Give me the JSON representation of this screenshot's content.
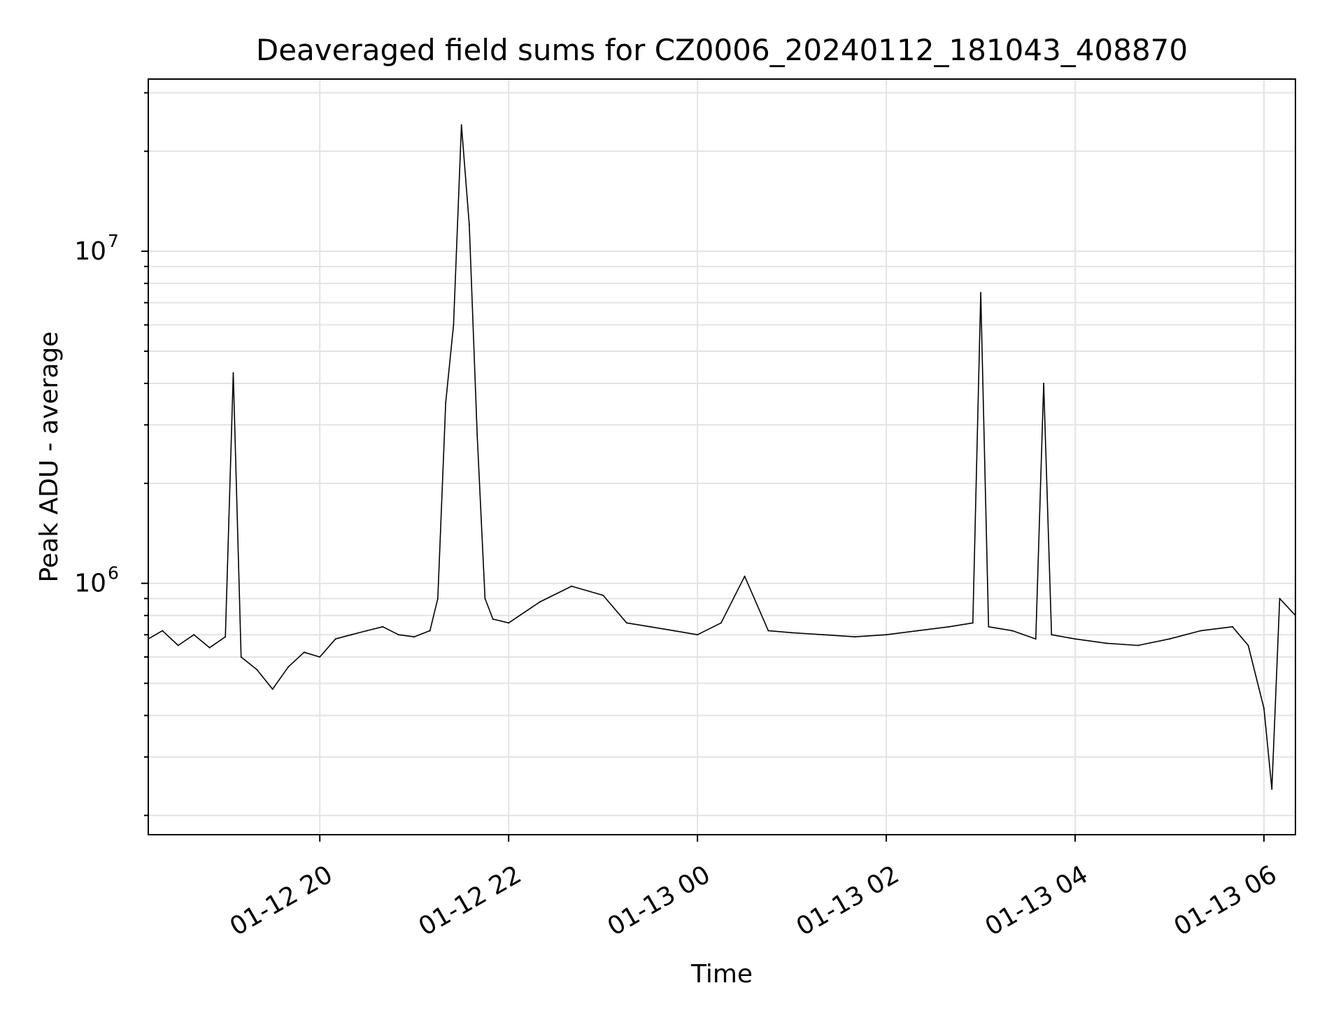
{
  "chart_data": {
    "type": "line",
    "title": "Deaveraged field sums for CZ0006_20240112_181043_408870",
    "xlabel": "Time",
    "ylabel": "Peak ADU - average",
    "yscale": "log",
    "grid": true,
    "legend": "none",
    "xlim": [
      "2024-01-12 18:11",
      "2024-01-13 06:20"
    ],
    "ylim": [
      175000,
      33000000
    ],
    "x_ticks": [
      {
        "value": "2024-01-12 20:00",
        "label": "01-12 20"
      },
      {
        "value": "2024-01-12 22:00",
        "label": "01-12 22"
      },
      {
        "value": "2024-01-13 00:00",
        "label": "01-13 00"
      },
      {
        "value": "2024-01-13 02:00",
        "label": "01-13 02"
      },
      {
        "value": "2024-01-13 04:00",
        "label": "01-13 04"
      },
      {
        "value": "2024-01-13 06:00",
        "label": "01-13 06"
      }
    ],
    "y_ticks": [
      {
        "value": 1000000,
        "base": "10",
        "exp": "6"
      },
      {
        "value": 10000000,
        "base": "10",
        "exp": "7"
      }
    ],
    "series": [
      {
        "color": "#000000",
        "x": [
          "2024-01-12 18:11",
          "2024-01-12 18:20",
          "2024-01-12 18:30",
          "2024-01-12 18:40",
          "2024-01-12 18:50",
          "2024-01-12 19:00",
          "2024-01-12 19:05",
          "2024-01-12 19:10",
          "2024-01-12 19:20",
          "2024-01-12 19:30",
          "2024-01-12 19:40",
          "2024-01-12 19:50",
          "2024-01-12 20:00",
          "2024-01-12 20:10",
          "2024-01-12 20:20",
          "2024-01-12 20:30",
          "2024-01-12 20:40",
          "2024-01-12 20:50",
          "2024-01-12 21:00",
          "2024-01-12 21:10",
          "2024-01-12 21:15",
          "2024-01-12 21:20",
          "2024-01-12 21:25",
          "2024-01-12 21:30",
          "2024-01-12 21:35",
          "2024-01-12 21:40",
          "2024-01-12 21:45",
          "2024-01-12 21:50",
          "2024-01-12 22:00",
          "2024-01-12 22:20",
          "2024-01-12 22:40",
          "2024-01-12 23:00",
          "2024-01-12 23:15",
          "2024-01-12 23:30",
          "2024-01-12 23:45",
          "2024-01-13 00:00",
          "2024-01-13 00:15",
          "2024-01-13 00:30",
          "2024-01-13 00:45",
          "2024-01-13 01:00",
          "2024-01-13 01:20",
          "2024-01-13 01:40",
          "2024-01-13 02:00",
          "2024-01-13 02:20",
          "2024-01-13 02:40",
          "2024-01-13 02:55",
          "2024-01-13 03:00",
          "2024-01-13 03:05",
          "2024-01-13 03:20",
          "2024-01-13 03:35",
          "2024-01-13 03:40",
          "2024-01-13 03:45",
          "2024-01-13 04:00",
          "2024-01-13 04:20",
          "2024-01-13 04:40",
          "2024-01-13 05:00",
          "2024-01-13 05:20",
          "2024-01-13 05:40",
          "2024-01-13 05:50",
          "2024-01-13 06:00",
          "2024-01-13 06:05",
          "2024-01-13 06:10",
          "2024-01-13 06:20"
        ],
        "y": [
          680000,
          720000,
          650000,
          700000,
          640000,
          690000,
          4300000,
          600000,
          550000,
          480000,
          560000,
          620000,
          600000,
          680000,
          700000,
          720000,
          740000,
          700000,
          690000,
          720000,
          900000,
          3500000,
          6000000,
          24000000,
          12000000,
          2800000,
          900000,
          780000,
          760000,
          880000,
          980000,
          920000,
          760000,
          740000,
          720000,
          700000,
          760000,
          1050000,
          720000,
          710000,
          700000,
          690000,
          700000,
          720000,
          740000,
          760000,
          7500000,
          740000,
          720000,
          680000,
          4000000,
          700000,
          680000,
          660000,
          650000,
          680000,
          720000,
          740000,
          650000,
          420000,
          240000,
          900000,
          800000
        ]
      }
    ]
  }
}
